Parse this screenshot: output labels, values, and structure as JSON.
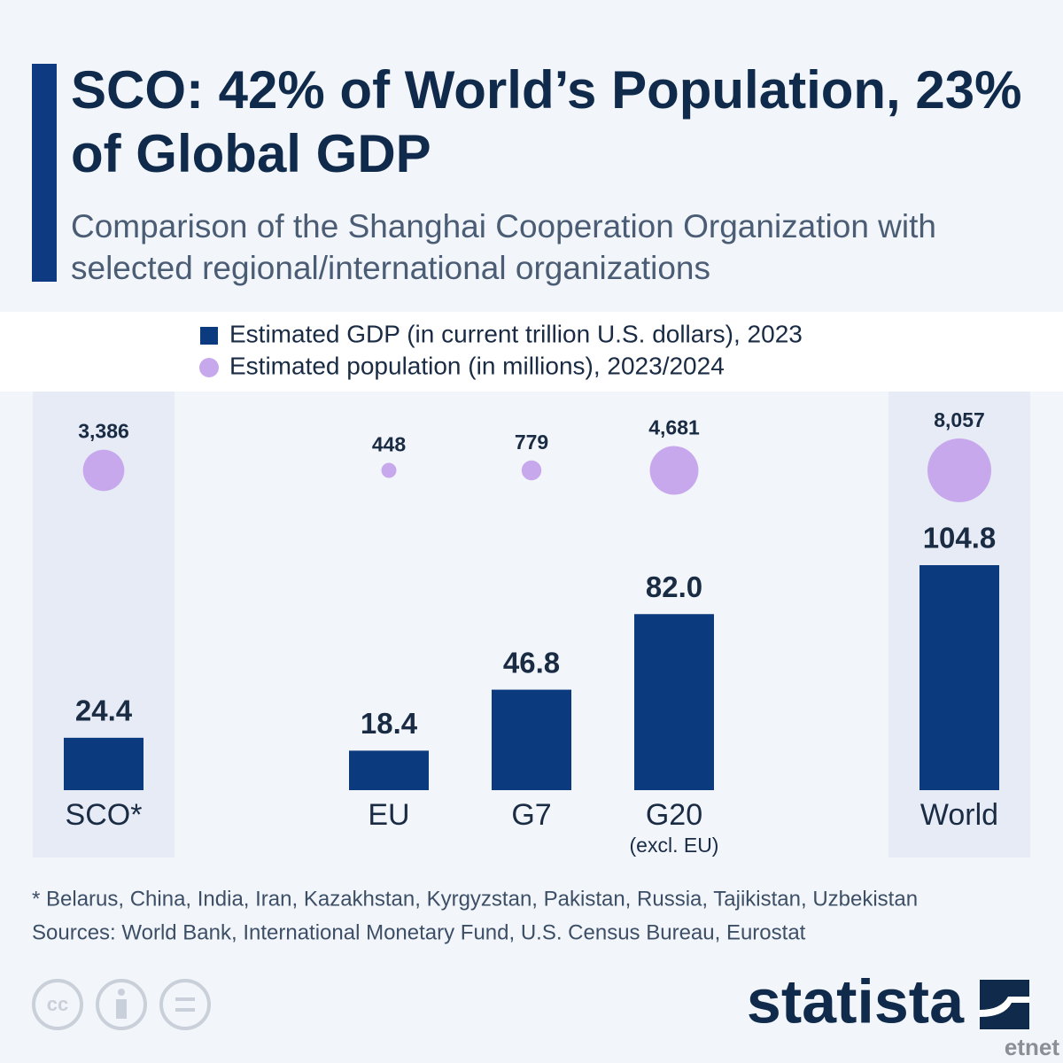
{
  "chart_data": {
    "type": "bar",
    "title": "SCO: 42% of World’s Population, 23% of Global GDP",
    "subtitle": "Comparison of the Shanghai Cooperation Organization with selected regional/international organizations",
    "categories": [
      "SCO*",
      "EU",
      "G7",
      "G20",
      "World"
    ],
    "category_sublabels": [
      null,
      null,
      null,
      "(excl. EU)",
      null
    ],
    "highlighted": [
      true,
      false,
      false,
      false,
      true
    ],
    "series": [
      {
        "name": "Estimated GDP (in current trillion U.S. dollars), 2023",
        "type": "bar",
        "color": "#0b3a7e",
        "values": [
          24.4,
          18.4,
          46.8,
          82.0,
          104.8
        ],
        "value_labels": [
          "24.4",
          "18.4",
          "46.8",
          "82.0",
          "104.8"
        ]
      },
      {
        "name": "Estimated population (in millions), 2023/2024",
        "type": "bubble",
        "color": "#c8a8ec",
        "values": [
          3386,
          448,
          779,
          4681,
          8057
        ],
        "value_labels": [
          "3,386",
          "448",
          "779",
          "4,681",
          "8,057"
        ]
      }
    ],
    "footnote": "* Belarus, China, India, Iran, Kazakhstan, Kyrgyzstan, Pakistan, Russia, Tajikistan, Uzbekistan",
    "source": "Sources: World Bank, International Monetary Fund, U.S. Census Bureau, Eurostat"
  },
  "brand": "statista",
  "watermark": "etnet"
}
